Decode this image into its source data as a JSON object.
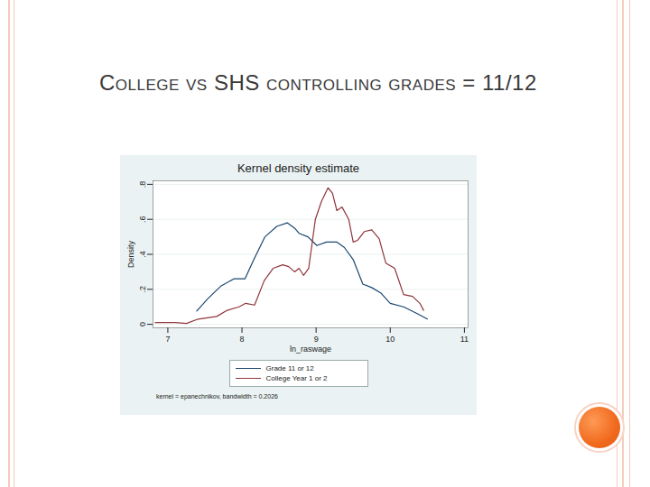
{
  "slide_title": "College vs SHS controlling grades = 11/12",
  "chart_data": {
    "type": "line",
    "title": "Kernel density estimate",
    "x_label": "ln_raswage",
    "y_label": "Density",
    "note": "kernel = epanechnikov, bandwidth = 0.2026",
    "xlim": [
      6.8,
      11.05
    ],
    "xticks": [
      7,
      8,
      9,
      10,
      11
    ],
    "ylim": [
      -0.02,
      0.82
    ],
    "yticks": [
      0,
      {
        "value": 0.2,
        "label": ".2"
      },
      {
        "value": 0.4,
        "label": ".4"
      },
      {
        "value": 0.6,
        "label": ".6"
      },
      {
        "value": 0.8,
        "label": ".8"
      }
    ],
    "grid": true,
    "legend": "bottom",
    "series": [
      {
        "name": "Grade 11 or 12",
        "color": "#1a476f",
        "x": [
          7.39,
          7.54,
          7.72,
          7.89,
          8.04,
          8.16,
          8.31,
          8.47,
          8.61,
          8.71,
          8.77,
          8.89,
          9.01,
          9.14,
          9.28,
          9.38,
          9.5,
          9.63,
          9.75,
          9.87,
          10.0,
          10.18,
          10.37,
          10.5
        ],
        "values": [
          0.076,
          0.147,
          0.22,
          0.26,
          0.26,
          0.37,
          0.5,
          0.56,
          0.58,
          0.55,
          0.52,
          0.5,
          0.45,
          0.47,
          0.47,
          0.44,
          0.37,
          0.23,
          0.21,
          0.18,
          0.12,
          0.1,
          0.06,
          0.03
        ]
      },
      {
        "name": "College Year 1 or 2",
        "color": "#90353b",
        "x": [
          6.83,
          7.1,
          7.25,
          7.41,
          7.66,
          7.8,
          7.96,
          8.05,
          8.17,
          8.3,
          8.42,
          8.55,
          8.63,
          8.71,
          8.77,
          8.83,
          8.9,
          8.99,
          9.07,
          9.16,
          9.22,
          9.28,
          9.35,
          9.44,
          9.5,
          9.56,
          9.65,
          9.75,
          9.85,
          9.94,
          10.06,
          10.18,
          10.3,
          10.4,
          10.45
        ],
        "values": [
          0.01,
          0.01,
          0.005,
          0.03,
          0.045,
          0.08,
          0.1,
          0.12,
          0.11,
          0.25,
          0.32,
          0.34,
          0.33,
          0.3,
          0.32,
          0.28,
          0.32,
          0.6,
          0.7,
          0.78,
          0.75,
          0.65,
          0.67,
          0.6,
          0.47,
          0.48,
          0.53,
          0.54,
          0.49,
          0.35,
          0.32,
          0.17,
          0.16,
          0.12,
          0.08
        ]
      }
    ]
  }
}
